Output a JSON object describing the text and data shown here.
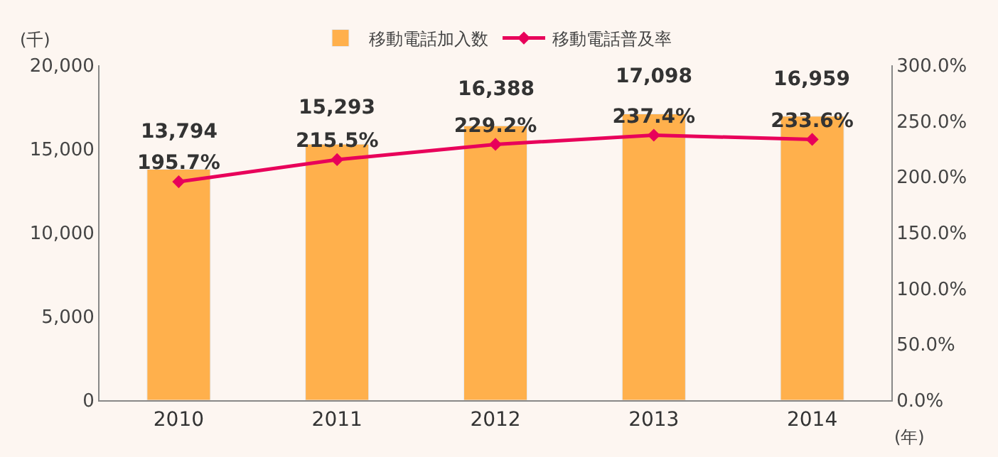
{
  "chart_data": {
    "type": "bar",
    "categories": [
      "2010",
      "2011",
      "2012",
      "2013",
      "2014"
    ],
    "series": [
      {
        "name": "移動電話加入数",
        "color": "#ffb04c",
        "values": [
          13794,
          15293,
          16388,
          17098,
          16959
        ],
        "value_labels": [
          "13,794",
          "15,293",
          "16,388",
          "17,098",
          "16,959"
        ]
      },
      {
        "name": "移動電話普及率",
        "type": "line",
        "axis": "y2",
        "color": "#e8005a",
        "marker": "diamond",
        "values": [
          195.7,
          215.5,
          229.2,
          237.4,
          233.6
        ],
        "value_labels": [
          "195.7%",
          "215.5%",
          "229.2%",
          "237.4%",
          "233.6%"
        ]
      }
    ],
    "ylim": [
      0,
      20000
    ],
    "yticks": [
      0,
      {
        "value": 5000,
        "label": "5,000"
      },
      {
        "value": 10000,
        "label": "10,000"
      },
      {
        "value": 15000,
        "label": "15,000"
      },
      {
        "value": 20000,
        "label": "20,000"
      }
    ],
    "y2lim": [
      0,
      300
    ],
    "y2ticks": [
      {
        "value": 0,
        "label": "0.0%"
      },
      {
        "value": 50,
        "label": "50.0%"
      },
      {
        "value": 100,
        "label": "100.0%"
      },
      {
        "value": 150,
        "label": "150.0%"
      },
      {
        "value": 200,
        "label": "200.0%"
      },
      {
        "value": 250,
        "label": "250.0%"
      },
      {
        "value": 300,
        "label": "300.0%"
      }
    ],
    "ylabel": "(千)",
    "xlabel": "(年)",
    "legend": "top",
    "grid": false
  }
}
